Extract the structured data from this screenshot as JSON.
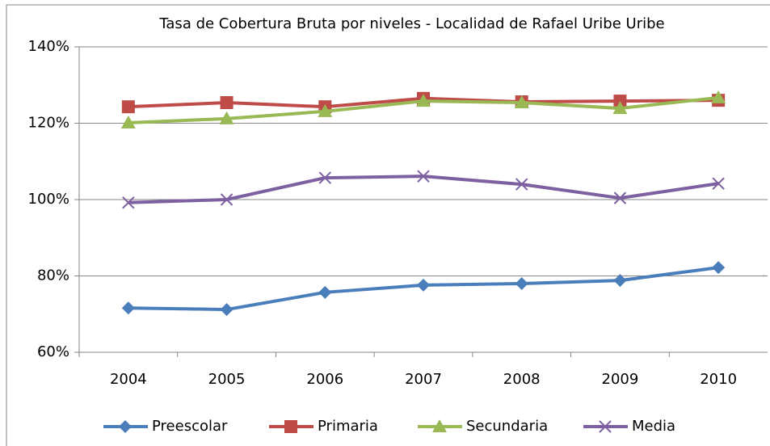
{
  "chart_data": {
    "type": "line",
    "title": "Tasa de Cobertura Bruta por niveles - Localidad de Rafael Uribe Uribe",
    "categories": [
      "2004",
      "2005",
      "2006",
      "2007",
      "2008",
      "2009",
      "2010"
    ],
    "series": [
      {
        "name": "Preescolar",
        "color": "#4a7ebb",
        "marker": "diamond",
        "values": [
          71.6,
          71.2,
          75.7,
          77.6,
          78.0,
          78.8,
          82.2
        ]
      },
      {
        "name": "Primaria",
        "color": "#be4b48",
        "marker": "square",
        "values": [
          124.3,
          125.4,
          124.3,
          126.5,
          125.6,
          125.8,
          126.0
        ]
      },
      {
        "name": "Secundaria",
        "color": "#98b954",
        "marker": "triangle",
        "values": [
          120.1,
          121.2,
          123.1,
          125.8,
          125.4,
          123.9,
          126.7
        ]
      },
      {
        "name": "Media",
        "color": "#7d60a0",
        "marker": "x",
        "values": [
          99.2,
          100.0,
          105.7,
          106.1,
          104.0,
          100.4,
          104.2
        ]
      }
    ],
    "ylim": [
      60,
      140
    ],
    "yticks": [
      {
        "value": 60,
        "label": "60%"
      },
      {
        "value": 80,
        "label": "80%"
      },
      {
        "value": 100,
        "label": "100%"
      },
      {
        "value": 120,
        "label": "120%"
      },
      {
        "value": 140,
        "label": "140%"
      }
    ],
    "grid": true,
    "legend": "bottom"
  }
}
